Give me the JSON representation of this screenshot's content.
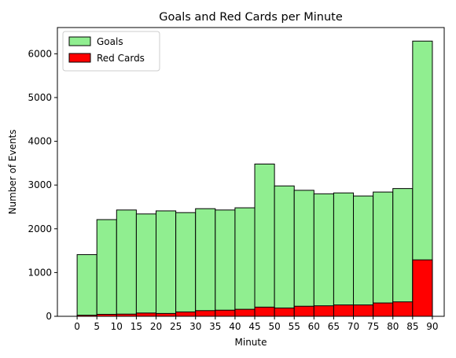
{
  "chart_data": {
    "type": "bar",
    "title": "Goals and Red Cards per Minute",
    "xlabel": "Minute",
    "ylabel": "Number of Events",
    "bin_edges": [
      0,
      5,
      10,
      15,
      20,
      25,
      30,
      35,
      40,
      45,
      50,
      55,
      60,
      65,
      70,
      75,
      80,
      85,
      90
    ],
    "x_ticks": [
      0,
      5,
      10,
      15,
      20,
      25,
      30,
      35,
      40,
      45,
      50,
      55,
      60,
      65,
      70,
      75,
      80,
      85,
      90
    ],
    "y_ticks": [
      0,
      1000,
      2000,
      3000,
      4000,
      5000,
      6000
    ],
    "xlim": [
      -5,
      93
    ],
    "ylim": [
      0,
      6600
    ],
    "grid": false,
    "legend_position": "top-left",
    "series": [
      {
        "name": "Goals",
        "color": "#90ee90",
        "values": [
          1410,
          2210,
          2430,
          2340,
          2410,
          2370,
          2460,
          2430,
          2480,
          3480,
          2980,
          2880,
          2800,
          2820,
          2750,
          2840,
          2920,
          6290
        ]
      },
      {
        "name": "Red Cards",
        "color": "#ff0000",
        "values": [
          25,
          45,
          50,
          75,
          65,
          100,
          130,
          140,
          160,
          210,
          190,
          230,
          240,
          260,
          260,
          305,
          330,
          1290
        ]
      }
    ]
  }
}
